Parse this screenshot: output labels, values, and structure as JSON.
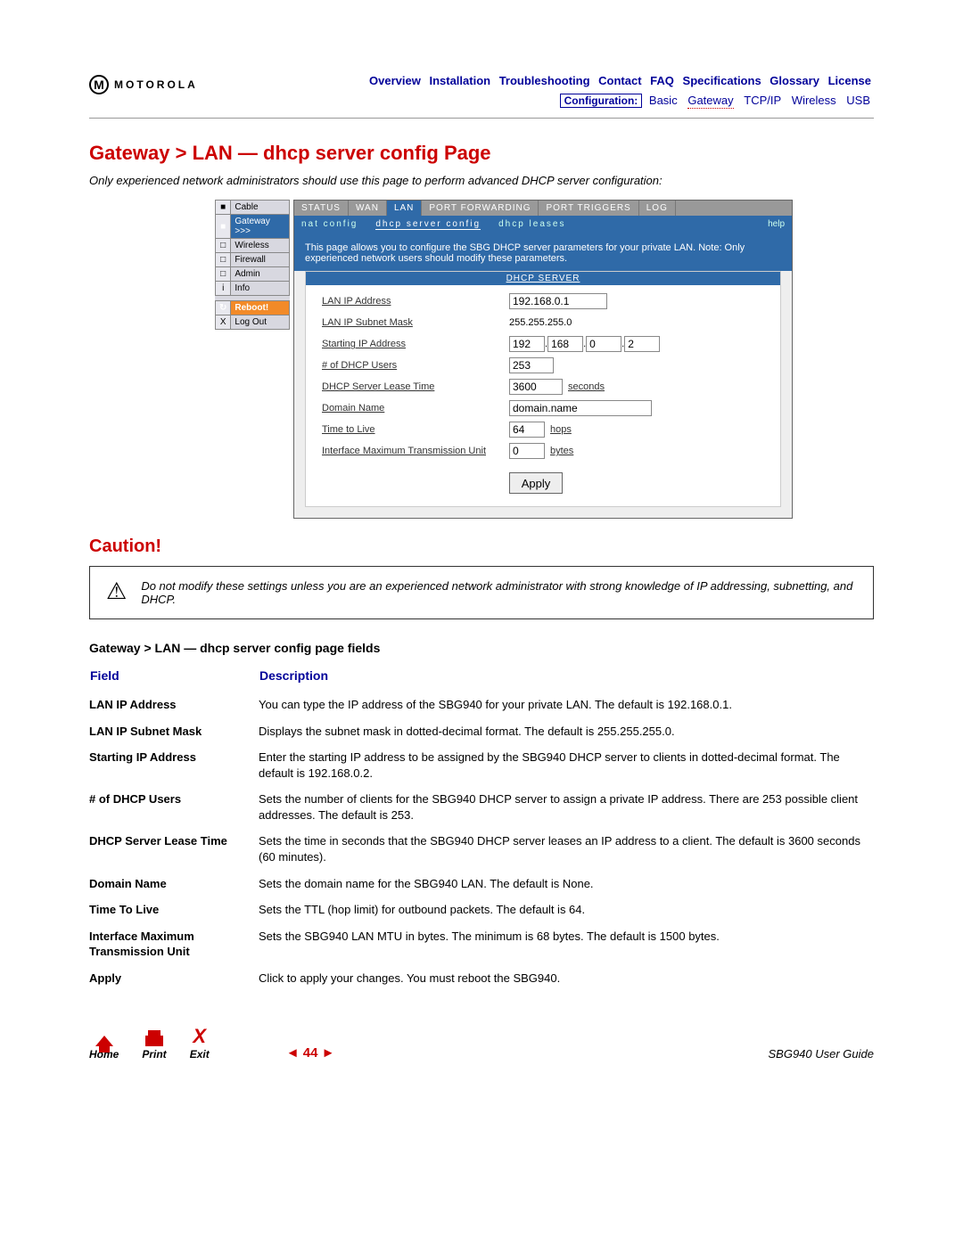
{
  "brand": "MOTOROLA",
  "nav_row1": [
    "Overview",
    "Installation",
    "Troubleshooting",
    "Contact",
    "FAQ",
    "Specifications",
    "Glossary",
    "License"
  ],
  "nav_row2": {
    "cfg": "Configuration:",
    "items": [
      "Basic",
      "Gateway",
      "TCP/IP",
      "Wireless",
      "USB"
    ],
    "dotted_index": 1
  },
  "page_title": "Gateway > LAN — dhcp server config Page",
  "intro": "Only experienced network administrators should use this page to perform advanced DHCP server configuration:",
  "sidemenu": [
    {
      "icon": "■",
      "label": "Cable",
      "sel": false
    },
    {
      "icon": "■",
      "label": "Gateway",
      "sel": true,
      "suffix": ">>>"
    },
    {
      "icon": "□",
      "label": "Wireless",
      "sel": false
    },
    {
      "icon": "□",
      "label": "Firewall",
      "sel": false
    },
    {
      "icon": "□",
      "label": "Admin",
      "sel": false
    },
    {
      "icon": "i",
      "label": "Info",
      "sel": false
    }
  ],
  "reboot_label": "Reboot!",
  "logout_label": "Log Out",
  "tabs_outer": [
    "STATUS",
    "WAN",
    "LAN",
    "PORT FORWARDING",
    "PORT TRIGGERS",
    "LOG"
  ],
  "tabs_outer_active": 2,
  "tabs_inner": [
    "nat config",
    "dhcp server config",
    "dhcp leases"
  ],
  "tabs_inner_active": 1,
  "help_label": "help",
  "blue_note": "This page allows you to configure the SBG DHCP server parameters for your private LAN. Note: Only experienced network users should modify these parameters.",
  "dhcp_header": "DHCP SERVER",
  "form": {
    "lan_ip": {
      "label": "LAN IP Address",
      "value": "192.168.0.1"
    },
    "subnet": {
      "label": "LAN IP Subnet Mask",
      "value": "255.255.255.0"
    },
    "start_ip": {
      "label": "Starting IP Address",
      "a": "192",
      "b": "168",
      "c": "0",
      "d": "2"
    },
    "users": {
      "label": "# of DHCP Users",
      "value": "253"
    },
    "lease": {
      "label": "DHCP Server Lease Time",
      "value": "3600",
      "unit": "seconds"
    },
    "domain": {
      "label": "Domain Name",
      "value": "domain.name"
    },
    "ttl": {
      "label": "Time to Live",
      "value": "64",
      "unit": "hops"
    },
    "mtu": {
      "label": "Interface Maximum Transmission Unit",
      "value": "0",
      "unit": "bytes"
    },
    "apply": "Apply"
  },
  "caution_heading": "Caution!",
  "caution_text": "Do not modify these settings unless you are an experienced network administrator with strong knowledge of IP addressing, subnetting, and DHCP.",
  "fields_title": "Gateway > LAN — dhcp server config page fields",
  "col_field": "Field",
  "col_desc": "Description",
  "fields": [
    {
      "f": "LAN IP Address",
      "d": "You can type the IP address of the SBG940 for your private LAN. The default is 192.168.0.1."
    },
    {
      "f": "LAN IP Subnet Mask",
      "d": "Displays the subnet mask in dotted-decimal format. The default is 255.255.255.0."
    },
    {
      "f": "Starting IP Address",
      "d": "Enter the starting IP address to be assigned by the SBG940 DHCP server to clients in dotted-decimal format. The default is 192.168.0.2."
    },
    {
      "f": "# of DHCP Users",
      "d": "Sets the number of clients for the SBG940 DHCP server to assign a private IP address. There are 253 possible client addresses. The default is 253."
    },
    {
      "f": "DHCP Server Lease Time",
      "d": "Sets the time in seconds that the SBG940 DHCP server leases an IP address to a client. The default is 3600 seconds (60 minutes)."
    },
    {
      "f": "Domain Name",
      "d": "Sets the domain name for the SBG940 LAN. The default is None."
    },
    {
      "f": "Time To Live",
      "d": "Sets the TTL (hop limit) for outbound packets. The default is 64."
    },
    {
      "f": "Interface Maximum Transmission Unit",
      "d": "Sets the SBG940 LAN MTU in bytes. The minimum is 68 bytes. The default is 1500 bytes."
    },
    {
      "f": "Apply",
      "d": "Click to apply your changes. You must reboot the SBG940."
    }
  ],
  "footer": {
    "home": "Home",
    "print": "Print",
    "exit": "Exit",
    "page_prev": "◄",
    "page_num": "44",
    "page_next": "►",
    "guide": "SBG940 User Guide"
  }
}
